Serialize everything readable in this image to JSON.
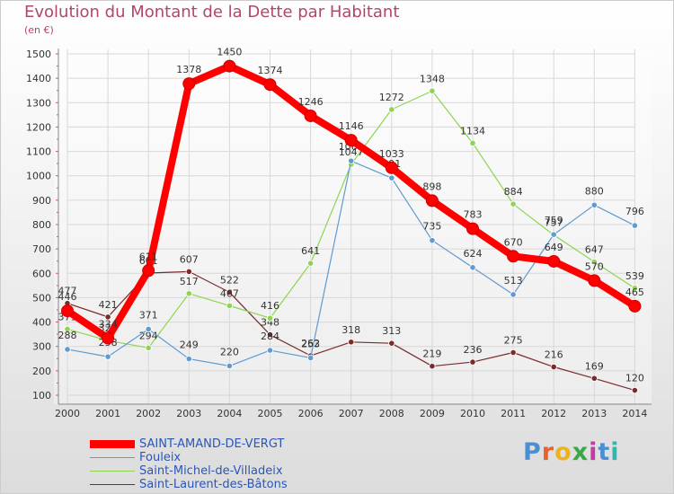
{
  "page": {
    "title": "Evolution du Montant de la Dette par Habitant",
    "subtitle": "(en €)",
    "logo_text": "Proxiti",
    "logo_colors": [
      "#4a8fd4",
      "#e9622a",
      "#ecb321",
      "#3aa84a",
      "#c63aa8",
      "#4a8fd4",
      "#2fb8b0"
    ]
  },
  "chart_data": {
    "type": "line",
    "title": "Evolution du Montant de la Dette par Habitant",
    "subtitle": "(en €)",
    "xlabel": "",
    "ylabel": "",
    "ylim": [
      100,
      1500
    ],
    "yticks": [
      100,
      200,
      300,
      400,
      500,
      600,
      700,
      800,
      900,
      1000,
      1100,
      1200,
      1300,
      1400,
      1500
    ],
    "grid": true,
    "legend_position": "bottom-left",
    "categories": [
      "2000",
      "2001",
      "2002",
      "2003",
      "2004",
      "2005",
      "2006",
      "2007",
      "2008",
      "2009",
      "2010",
      "2011",
      "2012",
      "2013",
      "2014"
    ],
    "series": [
      {
        "name": "Saint-Laurent-des-Bâtons",
        "color": "#7a2a2a",
        "values": [
          477,
          421,
          601,
          607,
          522,
          348,
          262,
          318,
          313,
          219,
          236,
          275,
          216,
          169,
          120
        ]
      },
      {
        "name": "Saint-Michel-de-Villadeix",
        "color": "#8fd450",
        "values": [
          371,
          324,
          294,
          517,
          467,
          416,
          641,
          1047,
          1272,
          1348,
          1134,
          884,
          757,
          647,
          539
        ]
      },
      {
        "name": "Fouleix",
        "color": "#5f9ad0",
        "values": [
          288,
          258,
          371,
          249,
          220,
          284,
          253,
          1061,
          991,
          735,
          624,
          513,
          759,
          880,
          796
        ]
      },
      {
        "name": "SAINT-AMAND-DE-VERGT",
        "color": "#ff0000",
        "values": [
          446,
          334,
          611,
          1378,
          1450,
          1374,
          1246,
          1146,
          1033,
          898,
          783,
          670,
          649,
          570,
          465
        ]
      }
    ],
    "legend": [
      "SAINT-AMAND-DE-VERGT",
      "Fouleix",
      "Saint-Michel-de-Villadeix",
      "Saint-Laurent-des-Bâtons"
    ]
  }
}
